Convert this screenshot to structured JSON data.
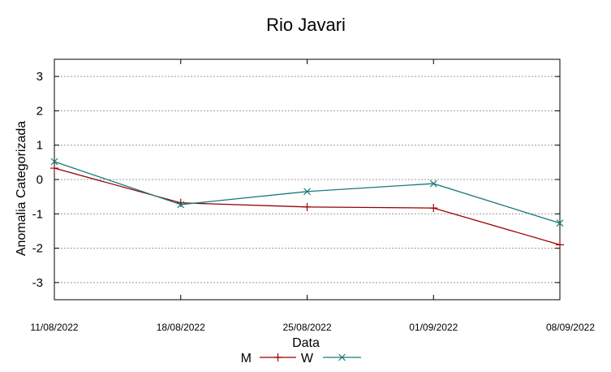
{
  "chart_data": {
    "type": "line",
    "title": "Rio Javari",
    "xlabel": "Data",
    "ylabel": "Anomalia Categorizada",
    "categories": [
      "11/08/2022",
      "18/08/2022",
      "25/08/2022",
      "01/09/2022",
      "08/09/2022"
    ],
    "ylim": [
      -3.5,
      3.5
    ],
    "yticks": [
      3,
      2,
      1,
      0,
      -1,
      -2,
      -3
    ],
    "ytick_labels": [
      "3",
      "2",
      "1",
      "0",
      "-1",
      "-2",
      "-3"
    ],
    "grid": true,
    "legend_position": "bottom-center",
    "series": [
      {
        "name": "M",
        "values": [
          0.33,
          -0.68,
          -0.8,
          -0.83,
          -1.9
        ],
        "color": "#990000",
        "marker": "plus"
      },
      {
        "name": "W",
        "values": [
          0.52,
          -0.73,
          -0.35,
          -0.12,
          -1.27
        ],
        "color": "#1a7a7a",
        "marker": "cross"
      }
    ]
  }
}
